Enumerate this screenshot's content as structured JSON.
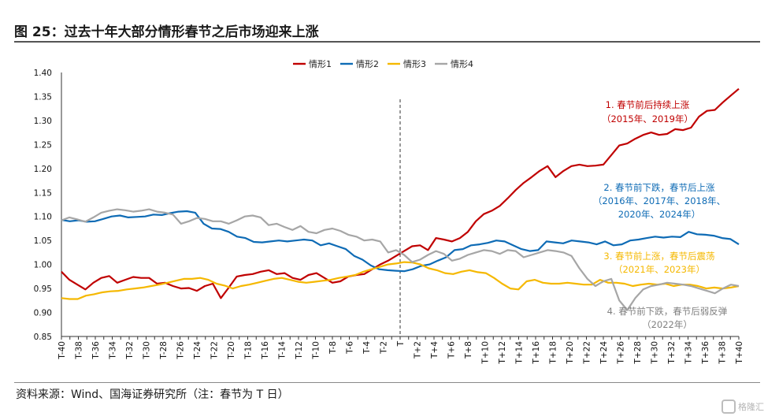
{
  "figure": {
    "title": "图 25：过去十年大部分情形春节之后市场迎来上涨",
    "source": "资料来源：Wind、国海证券研究所（注：春节为 T 日）",
    "watermark": "格隆汇"
  },
  "chart_data": {
    "type": "line",
    "ylim": [
      0.85,
      1.4
    ],
    "yticks": [
      "1.40",
      "1.35",
      "1.30",
      "1.25",
      "1.20",
      "1.15",
      "1.10",
      "1.05",
      "1.00",
      "0.95",
      "0.90",
      "0.85"
    ],
    "x_start": -40,
    "x_end": 40,
    "xtick_labels": [
      "T-40",
      "T-38",
      "T-36",
      "T-34",
      "T-32",
      "T-30",
      "T-28",
      "T-26",
      "T-24",
      "T-22",
      "T-20",
      "T-18",
      "T-16",
      "T-14",
      "T-12",
      "T-10",
      "T-8",
      "T-6",
      "T-4",
      "T-2",
      "T",
      "T+2",
      "T+4",
      "T+6",
      "T+8",
      "T+10",
      "T+12",
      "T+14",
      "T+16",
      "T+18",
      "T+20",
      "T+22",
      "T+24",
      "T+26",
      "T+28",
      "T+30",
      "T+32",
      "T+34",
      "T+36",
      "T+38",
      "T+40"
    ],
    "vline_at": 0,
    "grid": false,
    "legend_position": "top-center",
    "series": [
      {
        "name": "情形1",
        "color": "#C00000",
        "values": [
          0.985,
          0.968,
          0.958,
          0.948,
          0.962,
          0.972,
          0.976,
          0.962,
          0.968,
          0.974,
          0.972,
          0.972,
          0.96,
          0.962,
          0.955,
          0.95,
          0.951,
          0.945,
          0.955,
          0.96,
          0.93,
          0.952,
          0.975,
          0.978,
          0.98,
          0.985,
          0.988,
          0.98,
          0.982,
          0.972,
          0.968,
          0.978,
          0.982,
          0.972,
          0.962,
          0.965,
          0.975,
          0.978,
          0.98,
          0.99,
          1.0,
          1.008,
          1.018,
          1.028,
          1.038,
          1.04,
          1.03,
          1.055,
          1.052,
          1.048,
          1.055,
          1.068,
          1.09,
          1.105,
          1.112,
          1.122,
          1.138,
          1.155,
          1.17,
          1.182,
          1.195,
          1.205,
          1.182,
          1.195,
          1.205,
          1.208,
          1.205,
          1.206,
          1.208,
          1.228,
          1.248,
          1.252,
          1.262,
          1.27,
          1.275,
          1.27,
          1.272,
          1.282,
          1.28,
          1.285,
          1.308,
          1.32,
          1.322,
          1.338,
          1.352,
          1.366
        ]
      },
      {
        "name": "情形2",
        "color": "#0E6BB5",
        "values": [
          1.093,
          1.09,
          1.092,
          1.089,
          1.09,
          1.095,
          1.1,
          1.102,
          1.098,
          1.099,
          1.1,
          1.104,
          1.103,
          1.107,
          1.11,
          1.111,
          1.108,
          1.085,
          1.075,
          1.074,
          1.068,
          1.058,
          1.055,
          1.047,
          1.046,
          1.048,
          1.05,
          1.048,
          1.05,
          1.052,
          1.05,
          1.04,
          1.044,
          1.038,
          1.032,
          1.018,
          1.01,
          0.998,
          0.99,
          0.988,
          0.987,
          0.986,
          0.99,
          0.997,
          1.0,
          1.008,
          1.015,
          1.03,
          1.032,
          1.04,
          1.042,
          1.045,
          1.05,
          1.048,
          1.04,
          1.032,
          1.028,
          1.03,
          1.048,
          1.046,
          1.044,
          1.05,
          1.048,
          1.046,
          1.042,
          1.048,
          1.04,
          1.042,
          1.05,
          1.052,
          1.055,
          1.058,
          1.056,
          1.058,
          1.057,
          1.068,
          1.063,
          1.062,
          1.06,
          1.055,
          1.053,
          1.042
        ]
      },
      {
        "name": "情形3",
        "color": "#F5B800",
        "values": [
          0.93,
          0.928,
          0.928,
          0.935,
          0.938,
          0.942,
          0.944,
          0.945,
          0.948,
          0.95,
          0.952,
          0.955,
          0.958,
          0.962,
          0.966,
          0.97,
          0.97,
          0.972,
          0.968,
          0.96,
          0.956,
          0.95,
          0.955,
          0.958,
          0.962,
          0.966,
          0.97,
          0.972,
          0.968,
          0.964,
          0.962,
          0.964,
          0.966,
          0.968,
          0.972,
          0.975,
          0.978,
          0.985,
          0.99,
          0.995,
          1.0,
          1.002,
          1.005,
          1.004,
          1.0,
          0.992,
          0.988,
          0.982,
          0.98,
          0.985,
          0.988,
          0.984,
          0.982,
          0.972,
          0.96,
          0.95,
          0.948,
          0.965,
          0.968,
          0.962,
          0.96,
          0.96,
          0.962,
          0.96,
          0.958,
          0.958,
          0.968,
          0.962,
          0.962,
          0.96,
          0.955,
          0.958,
          0.96,
          0.958,
          0.96,
          0.955,
          0.958,
          0.958,
          0.955,
          0.95,
          0.952,
          0.95,
          0.952,
          0.955
        ]
      },
      {
        "name": "情形4",
        "color": "#A6A6A6",
        "values": [
          1.092,
          1.098,
          1.094,
          1.089,
          1.098,
          1.108,
          1.112,
          1.115,
          1.113,
          1.11,
          1.112,
          1.115,
          1.11,
          1.108,
          1.104,
          1.085,
          1.09,
          1.097,
          1.095,
          1.09,
          1.09,
          1.085,
          1.092,
          1.1,
          1.102,
          1.098,
          1.082,
          1.085,
          1.078,
          1.072,
          1.08,
          1.068,
          1.065,
          1.072,
          1.075,
          1.07,
          1.062,
          1.058,
          1.05,
          1.052,
          1.048,
          1.025,
          1.03,
          1.02,
          1.005,
          1.01,
          1.02,
          1.028,
          1.022,
          1.008,
          1.012,
          1.02,
          1.025,
          1.03,
          1.028,
          1.022,
          1.03,
          1.028,
          1.015,
          1.02,
          1.025,
          1.03,
          1.028,
          1.025,
          1.018,
          0.992,
          0.97,
          0.955,
          0.965,
          0.97,
          0.925,
          0.905,
          0.93,
          0.948,
          0.955,
          0.958,
          0.962,
          0.96,
          0.958,
          0.955,
          0.95,
          0.945,
          0.94,
          0.95,
          0.958,
          0.955
        ]
      }
    ],
    "annotations": [
      {
        "lines": [
          "1. 春节前后持续上涨",
          "（2015年、2019年）"
        ],
        "color": "#C00000"
      },
      {
        "lines": [
          "2. 春节前下跌，春节后上涨",
          "（2016年、2017年、2018年、",
          "2020年、2024年）"
        ],
        "color": "#0E6BB5"
      },
      {
        "lines": [
          "3. 春节前上涨，春节后震荡",
          "（2021年、2023年）"
        ],
        "color": "#F5B800"
      },
      {
        "lines": [
          "4. 春节前下跌，春节后弱反弹",
          "（2022年）"
        ],
        "color": "#808080"
      }
    ]
  }
}
